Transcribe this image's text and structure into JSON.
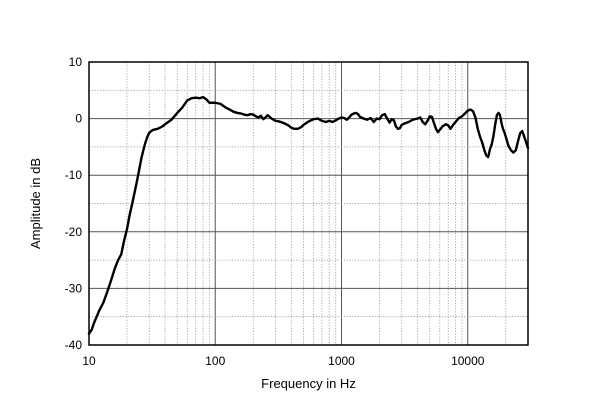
{
  "chart_data": {
    "type": "line",
    "xscale": "log",
    "xlabel": "Frequency in Hz",
    "ylabel": "Amplitude in dB",
    "xlim": [
      10,
      30000
    ],
    "ylim": [
      -40,
      10
    ],
    "grid": true,
    "x_tick_labels": [
      "10",
      "100",
      "1000",
      "10000"
    ],
    "x_ticks": [
      10,
      100,
      1000,
      10000
    ],
    "y_tick_labels": [
      "10",
      "0",
      "-10",
      "-20",
      "-30",
      "-40"
    ],
    "y_ticks": [
      10,
      0,
      -10,
      -20,
      -30,
      -40
    ],
    "series": [
      {
        "color": "#000000",
        "points": [
          [
            10,
            -38.0
          ],
          [
            10.5,
            -37.3
          ],
          [
            11,
            -36.0
          ],
          [
            11.5,
            -35.0
          ],
          [
            12,
            -34.0
          ],
          [
            13,
            -32.5
          ],
          [
            14,
            -30.5
          ],
          [
            15,
            -28.5
          ],
          [
            16,
            -26.5
          ],
          [
            17,
            -25.0
          ],
          [
            18,
            -24.0
          ],
          [
            19,
            -21.5
          ],
          [
            20,
            -19.5
          ],
          [
            21,
            -17.0
          ],
          [
            22,
            -15.0
          ],
          [
            23,
            -13.0
          ],
          [
            24,
            -11.0
          ],
          [
            25,
            -9.0
          ],
          [
            26,
            -7.0
          ],
          [
            27,
            -5.5
          ],
          [
            28,
            -4.2
          ],
          [
            29,
            -3.2
          ],
          [
            30,
            -2.5
          ],
          [
            32,
            -2.0
          ],
          [
            35,
            -1.8
          ],
          [
            38,
            -1.4
          ],
          [
            40,
            -1.0
          ],
          [
            45,
            -0.2
          ],
          [
            50,
            1.0
          ],
          [
            55,
            2.0
          ],
          [
            60,
            3.2
          ],
          [
            65,
            3.6
          ],
          [
            70,
            3.7
          ],
          [
            75,
            3.6
          ],
          [
            80,
            3.8
          ],
          [
            85,
            3.4
          ],
          [
            90,
            2.8
          ],
          [
            100,
            2.8
          ],
          [
            110,
            2.6
          ],
          [
            120,
            2.0
          ],
          [
            130,
            1.6
          ],
          [
            140,
            1.2
          ],
          [
            150,
            1.0
          ],
          [
            160,
            0.9
          ],
          [
            170,
            0.7
          ],
          [
            180,
            0.6
          ],
          [
            190,
            0.8
          ],
          [
            200,
            0.7
          ],
          [
            210,
            0.4
          ],
          [
            220,
            0.2
          ],
          [
            230,
            0.5
          ],
          [
            240,
            -0.1
          ],
          [
            250,
            0.2
          ],
          [
            260,
            0.6
          ],
          [
            270,
            0.3
          ],
          [
            280,
            0.0
          ],
          [
            300,
            -0.4
          ],
          [
            320,
            -0.5
          ],
          [
            350,
            -0.8
          ],
          [
            380,
            -1.2
          ],
          [
            400,
            -1.6
          ],
          [
            420,
            -1.8
          ],
          [
            450,
            -1.8
          ],
          [
            480,
            -1.5
          ],
          [
            500,
            -1.1
          ],
          [
            550,
            -0.5
          ],
          [
            600,
            -0.1
          ],
          [
            650,
            0.0
          ],
          [
            700,
            -0.4
          ],
          [
            750,
            -0.6
          ],
          [
            800,
            -0.4
          ],
          [
            850,
            -0.6
          ],
          [
            900,
            -0.3
          ],
          [
            950,
            0.0
          ],
          [
            1000,
            0.2
          ],
          [
            1050,
            0.1
          ],
          [
            1100,
            -0.2
          ],
          [
            1150,
            0.2
          ],
          [
            1200,
            0.7
          ],
          [
            1250,
            0.9
          ],
          [
            1300,
            1.0
          ],
          [
            1350,
            0.8
          ],
          [
            1400,
            0.3
          ],
          [
            1500,
            0.0
          ],
          [
            1600,
            -0.2
          ],
          [
            1700,
            0.1
          ],
          [
            1800,
            -0.6
          ],
          [
            1900,
            0.0
          ],
          [
            2000,
            -0.1
          ],
          [
            2100,
            0.6
          ],
          [
            2200,
            0.8
          ],
          [
            2300,
            0.0
          ],
          [
            2400,
            -0.7
          ],
          [
            2500,
            -0.1
          ],
          [
            2600,
            -0.3
          ],
          [
            2700,
            -1.4
          ],
          [
            2800,
            -1.8
          ],
          [
            2900,
            -1.7
          ],
          [
            3000,
            -1.1
          ],
          [
            3200,
            -0.8
          ],
          [
            3400,
            -0.6
          ],
          [
            3600,
            -0.3
          ],
          [
            3800,
            -0.1
          ],
          [
            4000,
            0.0
          ],
          [
            4200,
            0.2
          ],
          [
            4400,
            -0.6
          ],
          [
            4600,
            -1.0
          ],
          [
            4800,
            -0.4
          ],
          [
            5000,
            0.4
          ],
          [
            5200,
            0.3
          ],
          [
            5400,
            -0.8
          ],
          [
            5600,
            -1.8
          ],
          [
            5800,
            -2.4
          ],
          [
            6000,
            -2.0
          ],
          [
            6300,
            -1.4
          ],
          [
            6700,
            -1.0
          ],
          [
            7000,
            -1.2
          ],
          [
            7300,
            -1.8
          ],
          [
            7600,
            -1.2
          ],
          [
            8000,
            -0.6
          ],
          [
            8500,
            0.1
          ],
          [
            9000,
            0.4
          ],
          [
            9500,
            0.9
          ],
          [
            10000,
            1.4
          ],
          [
            10500,
            1.6
          ],
          [
            11000,
            1.3
          ],
          [
            11500,
            0.2
          ],
          [
            12000,
            -1.8
          ],
          [
            12500,
            -3.2
          ],
          [
            13000,
            -4.2
          ],
          [
            13500,
            -5.5
          ],
          [
            14000,
            -6.5
          ],
          [
            14500,
            -6.8
          ],
          [
            15000,
            -5.4
          ],
          [
            15500,
            -4.5
          ],
          [
            16000,
            -3.0
          ],
          [
            16500,
            -1.0
          ],
          [
            17000,
            0.6
          ],
          [
            17500,
            1.0
          ],
          [
            18000,
            0.6
          ],
          [
            18500,
            -0.8
          ],
          [
            19000,
            -1.8
          ],
          [
            19500,
            -2.4
          ],
          [
            20000,
            -3.2
          ],
          [
            21000,
            -4.8
          ],
          [
            22000,
            -5.6
          ],
          [
            23000,
            -6.0
          ],
          [
            24000,
            -5.6
          ],
          [
            25000,
            -4.0
          ],
          [
            26000,
            -2.6
          ],
          [
            27000,
            -2.2
          ],
          [
            28000,
            -3.2
          ],
          [
            29000,
            -4.2
          ],
          [
            30000,
            -5.2
          ]
        ]
      }
    ]
  }
}
